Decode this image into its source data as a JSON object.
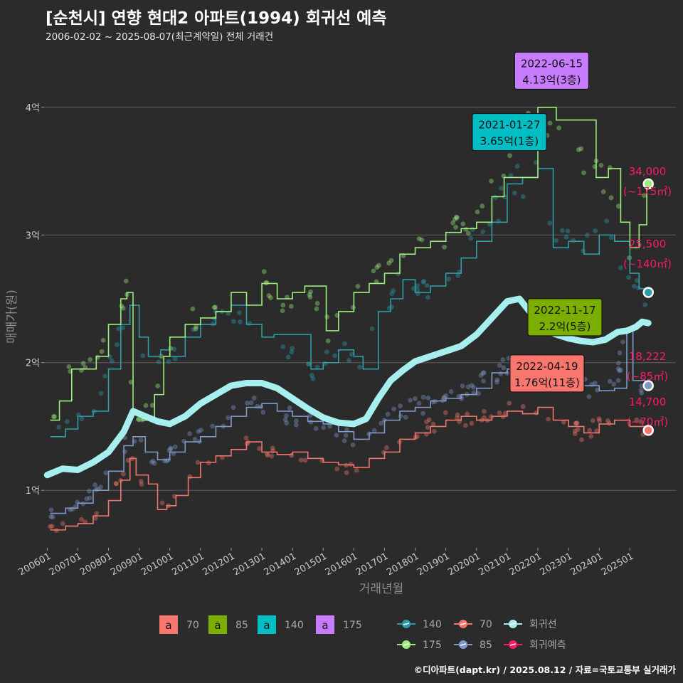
{
  "header": {
    "title": "[순천시] 연향 현대2 아파트(1994) 회귀선 예측",
    "subtitle": "2006-02-02 ~ 2025-08-07(최근계약일) 전체 거래건",
    "credit": "©디아파트(dapt.kr) / 2025.08.12 / 자료=국토교통부 실거래가"
  },
  "chart_data": {
    "type": "line",
    "xlabel": "거래년월",
    "ylabel": "매매가(원)",
    "x_range": [
      2005.9,
      2026.5
    ],
    "ylim": [
      0.55,
      4.45
    ],
    "y_ticks": [
      {
        "v": 1,
        "label": "1억"
      },
      {
        "v": 2,
        "label": "2억"
      },
      {
        "v": 3,
        "label": "3억"
      },
      {
        "v": 4,
        "label": "4억"
      }
    ],
    "x_ticks": [
      {
        "v": 2006.0,
        "label": "200601"
      },
      {
        "v": 2007.0,
        "label": "200701"
      },
      {
        "v": 2008.0,
        "label": "200801"
      },
      {
        "v": 2009.0,
        "label": "200901"
      },
      {
        "v": 2010.0,
        "label": "201001"
      },
      {
        "v": 2011.0,
        "label": "201101"
      },
      {
        "v": 2012.0,
        "label": "201201"
      },
      {
        "v": 2013.0,
        "label": "201301"
      },
      {
        "v": 2014.0,
        "label": "201401"
      },
      {
        "v": 2015.0,
        "label": "201501"
      },
      {
        "v": 2016.0,
        "label": "201601"
      },
      {
        "v": 2017.0,
        "label": "201701"
      },
      {
        "v": 2018.0,
        "label": "201801"
      },
      {
        "v": 2019.0,
        "label": "201901"
      },
      {
        "v": 2020.0,
        "label": "202001"
      },
      {
        "v": 2021.0,
        "label": "202101"
      },
      {
        "v": 2022.0,
        "label": "202201"
      },
      {
        "v": 2023.0,
        "label": "202301"
      },
      {
        "v": 2024.0,
        "label": "202401"
      },
      {
        "v": 2025.0,
        "label": "202501"
      }
    ],
    "series": [
      {
        "name": "70",
        "color": "#f2766b",
        "points": [
          [
            2006.1,
            0.69
          ],
          [
            2006.6,
            0.72
          ],
          [
            2007.0,
            0.74
          ],
          [
            2007.5,
            0.8
          ],
          [
            2008.0,
            0.92
          ],
          [
            2008.4,
            1.08
          ],
          [
            2008.7,
            1.25
          ],
          [
            2008.9,
            1.12
          ],
          [
            2009.3,
            1.05
          ],
          [
            2009.6,
            0.85
          ],
          [
            2009.9,
            0.88
          ],
          [
            2010.2,
            0.96
          ],
          [
            2010.6,
            1.1
          ],
          [
            2011.0,
            1.22
          ],
          [
            2011.5,
            1.27
          ],
          [
            2012.0,
            1.32
          ],
          [
            2012.5,
            1.38
          ],
          [
            2013.0,
            1.3
          ],
          [
            2013.5,
            1.28
          ],
          [
            2014.0,
            1.3
          ],
          [
            2014.5,
            1.25
          ],
          [
            2015.0,
            1.22
          ],
          [
            2015.5,
            1.2
          ],
          [
            2016.0,
            1.18
          ],
          [
            2016.5,
            1.25
          ],
          [
            2017.0,
            1.3
          ],
          [
            2017.5,
            1.4
          ],
          [
            2018.0,
            1.45
          ],
          [
            2018.5,
            1.5
          ],
          [
            2019.0,
            1.55
          ],
          [
            2019.5,
            1.58
          ],
          [
            2020.0,
            1.55
          ],
          [
            2020.5,
            1.58
          ],
          [
            2021.0,
            1.62
          ],
          [
            2021.5,
            1.6
          ],
          [
            2022.0,
            1.65
          ],
          [
            2022.5,
            1.55
          ],
          [
            2023.0,
            1.5
          ],
          [
            2023.5,
            1.45
          ],
          [
            2024.0,
            1.52
          ],
          [
            2024.5,
            1.55
          ],
          [
            2025.0,
            1.5
          ],
          [
            2025.5,
            1.47
          ]
        ]
      },
      {
        "name": "85",
        "color": "#7f98c9",
        "points": [
          [
            2006.1,
            0.82
          ],
          [
            2006.6,
            0.86
          ],
          [
            2007.0,
            0.9
          ],
          [
            2007.5,
            1.0
          ],
          [
            2008.0,
            1.15
          ],
          [
            2008.5,
            1.35
          ],
          [
            2008.8,
            1.42
          ],
          [
            2009.2,
            1.3
          ],
          [
            2009.6,
            1.24
          ],
          [
            2010.0,
            1.3
          ],
          [
            2010.5,
            1.38
          ],
          [
            2011.0,
            1.42
          ],
          [
            2011.5,
            1.5
          ],
          [
            2012.0,
            1.58
          ],
          [
            2012.5,
            1.65
          ],
          [
            2013.0,
            1.68
          ],
          [
            2013.5,
            1.62
          ],
          [
            2014.0,
            1.58
          ],
          [
            2014.5,
            1.54
          ],
          [
            2015.0,
            1.52
          ],
          [
            2015.5,
            1.46
          ],
          [
            2016.0,
            1.4
          ],
          [
            2016.5,
            1.45
          ],
          [
            2017.0,
            1.55
          ],
          [
            2017.5,
            1.62
          ],
          [
            2018.0,
            1.65
          ],
          [
            2018.5,
            1.7
          ],
          [
            2019.0,
            1.72
          ],
          [
            2019.5,
            1.75
          ],
          [
            2020.0,
            1.8
          ],
          [
            2020.5,
            1.92
          ],
          [
            2021.0,
            1.95
          ],
          [
            2021.5,
            1.98
          ],
          [
            2022.0,
            1.92
          ],
          [
            2022.5,
            1.85
          ],
          [
            2023.0,
            1.88
          ],
          [
            2023.5,
            1.82
          ],
          [
            2024.0,
            1.78
          ],
          [
            2024.5,
            1.8
          ],
          [
            2024.9,
            2.25
          ],
          [
            2025.1,
            1.86
          ],
          [
            2025.5,
            1.82
          ]
        ]
      },
      {
        "name": "140",
        "color": "#2e9da7",
        "points": [
          [
            2006.1,
            1.42
          ],
          [
            2006.6,
            1.48
          ],
          [
            2007.0,
            1.58
          ],
          [
            2007.5,
            1.62
          ],
          [
            2008.0,
            1.95
          ],
          [
            2008.4,
            2.3
          ],
          [
            2008.7,
            2.45
          ],
          [
            2009.0,
            2.2
          ],
          [
            2009.3,
            2.05
          ],
          [
            2009.7,
            2.1
          ],
          [
            2010.0,
            2.05
          ],
          [
            2010.5,
            2.2
          ],
          [
            2011.0,
            2.3
          ],
          [
            2011.5,
            2.4
          ],
          [
            2012.0,
            2.45
          ],
          [
            2012.5,
            2.3
          ],
          [
            2013.0,
            2.2
          ],
          [
            2013.4,
            2.22
          ],
          [
            2014.6,
            1.95
          ],
          [
            2015.0,
            2.0
          ],
          [
            2015.5,
            2.1
          ],
          [
            2016.0,
            2.05
          ],
          [
            2016.3,
            1.95
          ],
          [
            2016.8,
            2.4
          ],
          [
            2017.2,
            2.5
          ],
          [
            2017.6,
            2.65
          ],
          [
            2018.0,
            2.55
          ],
          [
            2018.5,
            2.6
          ],
          [
            2019.0,
            2.7
          ],
          [
            2019.5,
            2.82
          ],
          [
            2020.0,
            2.95
          ],
          [
            2020.5,
            3.1
          ],
          [
            2021.0,
            3.4
          ],
          [
            2021.5,
            3.45
          ],
          [
            2022.0,
            3.52
          ],
          [
            2022.5,
            2.9
          ],
          [
            2023.0,
            2.95
          ],
          [
            2023.5,
            2.85
          ],
          [
            2024.0,
            3.0
          ],
          [
            2024.5,
            2.95
          ],
          [
            2025.0,
            2.7
          ],
          [
            2025.3,
            2.58
          ],
          [
            2025.6,
            2.55
          ]
        ]
      },
      {
        "name": "175",
        "color": "#9ded7d",
        "points": [
          [
            2006.1,
            1.55
          ],
          [
            2006.4,
            1.7
          ],
          [
            2006.8,
            1.95
          ],
          [
            2007.2,
            1.95
          ],
          [
            2007.6,
            2.05
          ],
          [
            2008.0,
            2.3
          ],
          [
            2008.4,
            2.5
          ],
          [
            2008.6,
            2.55
          ],
          [
            2008.8,
            1.6
          ],
          [
            2009.1,
            1.55
          ],
          [
            2009.5,
            1.75
          ],
          [
            2009.8,
            2.05
          ],
          [
            2010.0,
            2.2
          ],
          [
            2010.5,
            2.3
          ],
          [
            2011.0,
            2.35
          ],
          [
            2011.5,
            2.4
          ],
          [
            2012.0,
            2.55
          ],
          [
            2012.5,
            2.45
          ],
          [
            2013.0,
            2.62
          ],
          [
            2013.5,
            2.5
          ],
          [
            2014.0,
            2.55
          ],
          [
            2014.4,
            2.6
          ],
          [
            2014.6,
            2.6
          ],
          [
            2015.1,
            2.25
          ],
          [
            2015.5,
            2.4
          ],
          [
            2016.0,
            2.55
          ],
          [
            2016.5,
            2.62
          ],
          [
            2017.0,
            2.7
          ],
          [
            2017.5,
            2.85
          ],
          [
            2018.0,
            2.9
          ],
          [
            2018.5,
            2.95
          ],
          [
            2019.0,
            3.02
          ],
          [
            2019.5,
            3.05
          ],
          [
            2020.0,
            3.1
          ],
          [
            2020.5,
            3.3
          ],
          [
            2020.9,
            3.45
          ],
          [
            2022.0,
            4.0
          ],
          [
            2022.6,
            3.9
          ],
          [
            2023.9,
            3.45
          ],
          [
            2024.3,
            3.52
          ],
          [
            2024.7,
            3.1
          ],
          [
            2025.0,
            2.9
          ],
          [
            2025.3,
            3.08
          ],
          [
            2025.55,
            3.4
          ]
        ]
      },
      {
        "name": "회귀선",
        "color": "#a7efee",
        "points": [
          [
            2006.0,
            1.12
          ],
          [
            2006.5,
            1.17
          ],
          [
            2007.0,
            1.16
          ],
          [
            2007.5,
            1.22
          ],
          [
            2008.0,
            1.3
          ],
          [
            2008.5,
            1.46
          ],
          [
            2008.8,
            1.62
          ],
          [
            2009.2,
            1.58
          ],
          [
            2009.6,
            1.54
          ],
          [
            2010.0,
            1.52
          ],
          [
            2010.5,
            1.58
          ],
          [
            2011.0,
            1.68
          ],
          [
            2011.5,
            1.75
          ],
          [
            2012.0,
            1.82
          ],
          [
            2012.5,
            1.84
          ],
          [
            2013.0,
            1.84
          ],
          [
            2013.5,
            1.8
          ],
          [
            2014.0,
            1.72
          ],
          [
            2014.5,
            1.64
          ],
          [
            2015.0,
            1.57
          ],
          [
            2015.5,
            1.53
          ],
          [
            2016.0,
            1.52
          ],
          [
            2016.4,
            1.56
          ],
          [
            2016.8,
            1.72
          ],
          [
            2017.2,
            1.86
          ],
          [
            2017.6,
            1.94
          ],
          [
            2018.0,
            2.01
          ],
          [
            2018.5,
            2.05
          ],
          [
            2019.0,
            2.09
          ],
          [
            2019.5,
            2.13
          ],
          [
            2020.0,
            2.22
          ],
          [
            2020.5,
            2.35
          ],
          [
            2021.0,
            2.48
          ],
          [
            2021.4,
            2.5
          ],
          [
            2021.8,
            2.38
          ],
          [
            2022.2,
            2.26
          ],
          [
            2022.6,
            2.22
          ],
          [
            2023.0,
            2.19
          ],
          [
            2023.4,
            2.17
          ],
          [
            2023.8,
            2.16
          ],
          [
            2024.2,
            2.18
          ],
          [
            2024.6,
            2.24
          ],
          [
            2024.9,
            2.25
          ],
          [
            2025.2,
            2.28
          ],
          [
            2025.4,
            2.32
          ],
          [
            2025.6,
            2.31
          ]
        ]
      }
    ],
    "annotations": [
      {
        "date": "2022-06-15",
        "value": "4.13억(3층)",
        "color": "#c77cff",
        "x": 2022.45,
        "y": 4.13
      },
      {
        "date": "2021-01-27",
        "value": "3.65억(1층)",
        "color": "#00bec4",
        "x": 2021.07,
        "y": 3.65
      },
      {
        "date": "2022-11-17",
        "value": "2.2억(5층)",
        "color": "#7cae00",
        "x": 2022.88,
        "y": 2.2
      },
      {
        "date": "2022-04-19",
        "value": "1.76억(11층)",
        "color": "#f8766d",
        "x": 2022.3,
        "y": 1.76
      }
    ],
    "endpoints": [
      {
        "area": "175",
        "price": "34,000",
        "size": "(~175㎡)",
        "x": 2025.6,
        "y": 3.4,
        "color": "#9ded7d"
      },
      {
        "area": "140",
        "price": "25,500",
        "size": "(~140㎡)",
        "x": 2025.6,
        "y": 2.55,
        "color": "#2e9da7"
      },
      {
        "area": "85",
        "price": "18,222",
        "size": "(~85㎡)",
        "x": 2025.6,
        "y": 1.82,
        "color": "#7f98c9"
      },
      {
        "area": "70",
        "price": "14,700",
        "size": "(~70㎡)",
        "x": 2025.6,
        "y": 1.47,
        "color": "#f2766b"
      }
    ],
    "legend": {
      "placement": "bottom",
      "label_boxes": [
        {
          "glyph": "a",
          "label": "70",
          "color": "#f8766d"
        },
        {
          "glyph": "a",
          "label": "85",
          "color": "#7cae00"
        },
        {
          "glyph": "a",
          "label": "140",
          "color": "#00bec4"
        },
        {
          "glyph": "a",
          "label": "175",
          "color": "#c77cff"
        }
      ],
      "lines": [
        {
          "label": "140",
          "color": "#2e9da7"
        },
        {
          "label": "70",
          "color": "#f2766b"
        },
        {
          "label": "회귀선",
          "color": "#a7efee"
        },
        {
          "label": "175",
          "color": "#9ded7d"
        },
        {
          "label": "85",
          "color": "#7f98c9"
        },
        {
          "label": "회귀예측",
          "color": "#ff1a66"
        }
      ]
    }
  }
}
